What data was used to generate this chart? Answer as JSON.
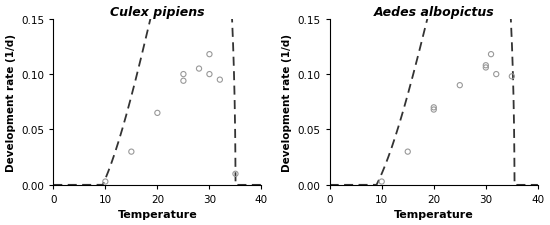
{
  "title1": "Culex pipiens",
  "title2": "Aedes albopictus",
  "xlabel": "Temperature",
  "ylabel": "Development rate (1/d)",
  "xlim": [
    0,
    40
  ],
  "ylim": [
    0,
    0.15
  ],
  "xticks": [
    0,
    10,
    20,
    30,
    40
  ],
  "yticks": [
    0.0,
    0.05,
    0.1,
    0.15
  ],
  "culex_data_x": [
    10,
    15,
    20,
    25,
    25,
    28,
    30,
    30,
    32,
    35
  ],
  "culex_data_y": [
    0.003,
    0.03,
    0.065,
    0.094,
    0.1,
    0.105,
    0.1,
    0.118,
    0.095,
    0.01
  ],
  "aedes_data_x": [
    10,
    15,
    20,
    20,
    25,
    30,
    30,
    31,
    32,
    35
  ],
  "aedes_data_y": [
    0.003,
    0.03,
    0.068,
    0.07,
    0.09,
    0.106,
    0.108,
    0.118,
    0.1,
    0.098
  ],
  "culex_briere": {
    "a": 0.000217,
    "Tmin": 9.5,
    "Tmax": 35.0
  },
  "aedes_briere": {
    "a": 0.0002,
    "Tmin": 9.0,
    "Tmax": 35.5
  },
  "line_color": "#333333",
  "point_color": "#999999",
  "background_color": "#ffffff"
}
